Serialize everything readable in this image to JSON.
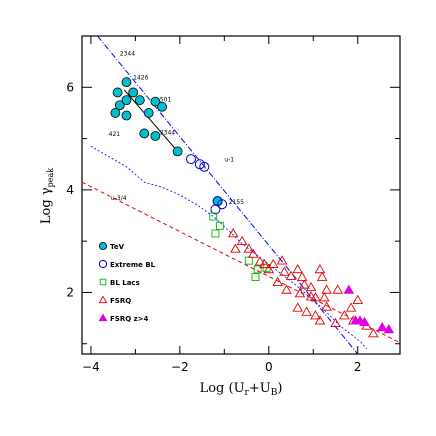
{
  "chart_data": {
    "type": "scatter",
    "xlabel_main": "Log (U",
    "xlabel_sub1": "r",
    "xlabel_mid": "+U",
    "xlabel_sub2": "B",
    "xlabel_end": ")",
    "ylabel_main": "Log γ",
    "ylabel_sub": "peak",
    "xlim": [
      -4.2,
      2.95
    ],
    "ylim": [
      0.8,
      7.0
    ],
    "x_ticks": [
      {
        "v": -4,
        "label": "−4"
      },
      {
        "v": -2,
        "label": "−2"
      },
      {
        "v": 0,
        "label": "0"
      },
      {
        "v": 2,
        "label": "2"
      }
    ],
    "y_ticks": [
      {
        "v": 2,
        "label": "2"
      },
      {
        "v": 4,
        "label": "4"
      },
      {
        "v": 6,
        "label": "6"
      }
    ],
    "grid": false,
    "legend_position": "bottom-left",
    "colors": {
      "tev": "#00c0d0",
      "extreme_bl": "#0000cc",
      "bl_lacs": "#00bb00",
      "fsrq": "#e00000",
      "fsrq_high_z": "#e000e0",
      "blue_line": "#0000ff",
      "red_line": "#e00000"
    },
    "legend": [
      {
        "key": "tev",
        "marker": "filled-circle",
        "label": "TeV"
      },
      {
        "key": "extreme_bl",
        "marker": "open-circle",
        "label": "Extreme BL"
      },
      {
        "key": "bl_lacs",
        "marker": "open-square",
        "label": "BL Lacs"
      },
      {
        "key": "fsrq",
        "marker": "open-triangle",
        "label": "FSRQ"
      },
      {
        "key": "fsrq_high_z",
        "marker": "filled-triangle",
        "label": "FSRQ z>4"
      }
    ],
    "series": [
      {
        "key": "tev",
        "points": [
          [
            -3.2,
            6.1
          ],
          [
            -3.05,
            5.9
          ],
          [
            -3.4,
            5.9
          ],
          [
            -3.35,
            5.65
          ],
          [
            -3.2,
            5.75
          ],
          [
            -2.9,
            5.75
          ],
          [
            -2.55,
            5.72
          ],
          [
            -2.4,
            5.62
          ],
          [
            -2.7,
            5.5
          ],
          [
            -3.45,
            5.5
          ],
          [
            -3.2,
            5.45
          ],
          [
            -2.8,
            5.1
          ],
          [
            -2.55,
            5.05
          ],
          [
            -2.05,
            4.75
          ],
          [
            -1.15,
            3.78
          ]
        ]
      },
      {
        "key": "extreme_bl",
        "points": [
          [
            -1.75,
            4.6
          ],
          [
            -1.55,
            4.5
          ],
          [
            -1.45,
            4.45
          ],
          [
            -1.15,
            3.78
          ],
          [
            -1.05,
            3.72
          ],
          [
            -1.2,
            3.62
          ]
        ]
      },
      {
        "key": "bl_lacs",
        "points": [
          [
            -1.25,
            3.48
          ],
          [
            -1.1,
            3.3
          ],
          [
            -1.2,
            3.15
          ],
          [
            -0.45,
            2.62
          ],
          [
            -0.25,
            2.45
          ],
          [
            -0.05,
            2.48
          ],
          [
            -0.3,
            2.3
          ]
        ]
      },
      {
        "key": "fsrq",
        "points": [
          [
            -0.8,
            3.15
          ],
          [
            -0.6,
            3.0
          ],
          [
            -0.75,
            2.85
          ],
          [
            -0.45,
            2.85
          ],
          [
            -0.35,
            2.75
          ],
          [
            -0.2,
            2.6
          ],
          [
            -0.1,
            2.55
          ],
          [
            0.0,
            2.45
          ],
          [
            0.1,
            2.55
          ],
          [
            0.3,
            2.62
          ],
          [
            0.35,
            2.4
          ],
          [
            0.5,
            2.32
          ],
          [
            0.65,
            2.45
          ],
          [
            0.75,
            2.3
          ],
          [
            0.8,
            2.15
          ],
          [
            0.95,
            2.1
          ],
          [
            1.15,
            2.45
          ],
          [
            1.2,
            2.3
          ],
          [
            1.3,
            2.05
          ],
          [
            0.95,
            1.92
          ],
          [
            0.7,
            1.98
          ],
          [
            1.25,
            1.9
          ],
          [
            1.55,
            2.05
          ],
          [
            0.65,
            1.7
          ],
          [
            0.85,
            1.62
          ],
          [
            1.05,
            1.55
          ],
          [
            1.3,
            1.72
          ],
          [
            1.15,
            1.45
          ],
          [
            1.5,
            1.4
          ],
          [
            1.7,
            1.55
          ],
          [
            2.2,
            1.35
          ],
          [
            2.35,
            1.2
          ],
          [
            1.85,
            1.7
          ],
          [
            2.0,
            1.85
          ],
          [
            1.9,
            1.45
          ],
          [
            1.05,
            1.9
          ],
          [
            0.4,
            2.05
          ],
          [
            0.2,
            2.2
          ]
        ]
      },
      {
        "key": "fsrq_high_z",
        "points": [
          [
            1.8,
            2.05
          ],
          [
            1.95,
            1.45
          ],
          [
            2.05,
            1.45
          ],
          [
            2.15,
            1.42
          ],
          [
            2.55,
            1.32
          ],
          [
            2.7,
            1.28
          ]
        ]
      }
    ],
    "fit_lines": [
      {
        "key": "blue_line",
        "style": "dash-dot",
        "from": [
          -3.85,
          7.0
        ],
        "to": [
          2.0,
          0.8
        ]
      },
      {
        "key": "red_line",
        "style": "dashed",
        "from": [
          -4.2,
          4.15
        ],
        "to": [
          2.95,
          1.02
        ]
      },
      {
        "key": "black_line",
        "style": "solid",
        "from": [
          -3.25,
          5.95
        ],
        "to": [
          -2.05,
          4.75
        ]
      }
    ],
    "blue_curve": [
      [
        -4.0,
        4.85
      ],
      [
        -3.2,
        4.45
      ],
      [
        -2.8,
        4.15
      ],
      [
        -2.4,
        4.05
      ],
      [
        -2.0,
        3.9
      ],
      [
        -1.6,
        3.7
      ],
      [
        -1.2,
        3.45
      ],
      [
        -0.6,
        2.95
      ],
      [
        0.0,
        2.55
      ],
      [
        0.6,
        2.15
      ],
      [
        1.2,
        1.7
      ],
      [
        1.6,
        1.35
      ],
      [
        2.05,
        1.05
      ],
      [
        2.2,
        0.9
      ]
    ],
    "annotations": [
      {
        "text": "2344",
        "x": -3.35,
        "y": 6.62
      },
      {
        "text": "1426",
        "x": -3.05,
        "y": 6.15
      },
      {
        "text": "501",
        "x": -2.45,
        "y": 5.72
      },
      {
        "text": "421",
        "x": -3.6,
        "y": 5.05
      },
      {
        "text": "2344",
        "x": -2.45,
        "y": 5.08
      },
      {
        "text": "u-1",
        "x": -1.0,
        "y": 4.55
      },
      {
        "text": "2155",
        "x": -0.9,
        "y": 3.72
      },
      {
        "text": "u-3/4",
        "x": -3.55,
        "y": 3.8
      }
    ]
  }
}
